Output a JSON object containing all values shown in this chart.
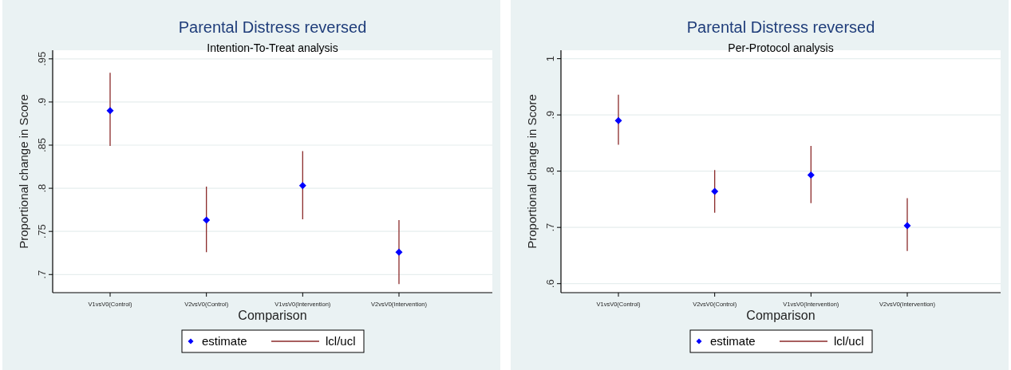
{
  "chart_data": [
    {
      "type": "scatter",
      "title": "Parental Distress reversed",
      "subtitle": "Intention-To-Treat analysis",
      "xlabel": "Comparison",
      "ylabel": "Proportional change in Score",
      "categories": [
        "V1vsV0(Control)",
        "V2vsV0(Control)",
        "V1vsV0(Intervention)",
        "V2vsV0(Intervention)"
      ],
      "ylim": [
        0.679,
        0.96
      ],
      "yticks": [
        {
          "value": 0.7,
          "label": ".7"
        },
        {
          "value": 0.75,
          "label": ".75"
        },
        {
          "value": 0.8,
          "label": ".8"
        },
        {
          "value": 0.85,
          "label": ".85"
        },
        {
          "value": 0.9,
          "label": ".9"
        },
        {
          "value": 0.95,
          "label": ".95"
        }
      ],
      "series": [
        {
          "name": "estimate",
          "color": "#0000ff",
          "values": [
            0.89,
            0.763,
            0.803,
            0.726
          ],
          "errors": [
            [
              0.849,
              0.934
            ],
            [
              0.726,
              0.802
            ],
            [
              0.764,
              0.843
            ],
            [
              0.689,
              0.763
            ]
          ]
        }
      ],
      "annotations": [
        "lcl/ucl"
      ],
      "grid": "y",
      "legend": "bottom",
      "marker": "diamond"
    },
    {
      "type": "scatter",
      "title": "Parental Distress reversed",
      "subtitle": "Per-Protocol analysis",
      "xlabel": "Comparison",
      "ylabel": "Proportional change in Score",
      "categories": [
        "V1vsV0(Control)",
        "V2vsV0(Control)",
        "V1vsV0(Intervention)",
        "V2vsV0(Intervention)"
      ],
      "ylim": [
        0.584,
        1.015
      ],
      "yticks": [
        {
          "value": 0.6,
          "label": ".6"
        },
        {
          "value": 0.7,
          "label": ".7"
        },
        {
          "value": 0.8,
          "label": ".8"
        },
        {
          "value": 0.9,
          "label": ".9"
        },
        {
          "value": 1,
          "label": "1"
        }
      ],
      "series": [
        {
          "name": "estimate",
          "color": "#0000ff",
          "values": [
            0.89,
            0.764,
            0.793,
            0.703
          ],
          "errors": [
            [
              0.847,
              0.936
            ],
            [
              0.726,
              0.802
            ],
            [
              0.743,
              0.845
            ],
            [
              0.658,
              0.752
            ]
          ]
        }
      ],
      "annotations": [
        "lcl/ucl"
      ],
      "grid": "y",
      "legend": "bottom",
      "marker": "diamond"
    }
  ]
}
